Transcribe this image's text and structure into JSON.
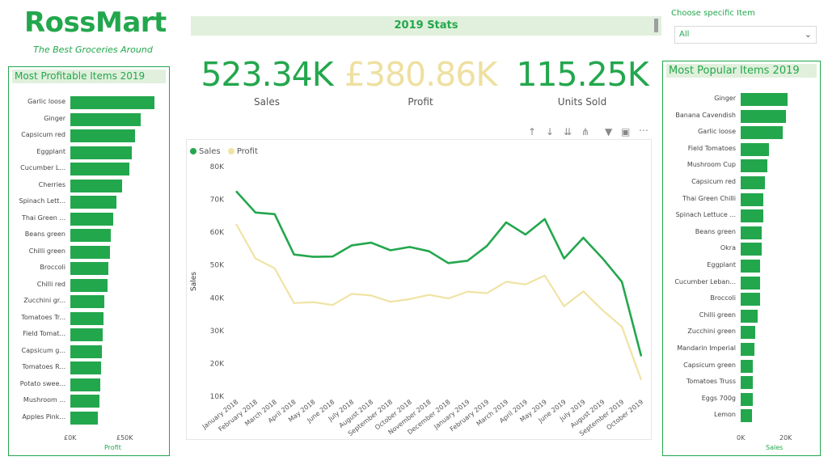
{
  "brand": {
    "title": "RossMart",
    "tagline": "The Best Groceries Around"
  },
  "banner": {
    "title": "2019 Stats"
  },
  "filter": {
    "label": "Choose specific Item",
    "selected": "All"
  },
  "kpis": [
    {
      "value": "523.34K",
      "label": "Sales",
      "color": "#23a74d"
    },
    {
      "value": "£380.86K",
      "label": "Profit",
      "color": "#eee0a0"
    },
    {
      "value": "115.25K",
      "label": "Units Sold",
      "color": "#23a74d"
    }
  ],
  "colors": {
    "accent": "#23a74d",
    "profit": "#f0e3a4",
    "banner": "#e1f0dc"
  },
  "toolbar_icons": [
    "arrow-up-icon",
    "arrow-down-icon",
    "double-arrow-down-icon",
    "fork-icon",
    "filter-icon",
    "focus-mode-icon",
    "more-options-icon"
  ],
  "chart_data": [
    {
      "type": "bar",
      "title": "Most Profitable Items 2019",
      "xlabel": "Profit",
      "categories": [
        "Garlic loose",
        "Ginger",
        "Capsicum red",
        "Eggplant",
        "Cucumber L...",
        "Cherries",
        "Spinach Lett...",
        "Thai Green ...",
        "Beans green",
        "Chilli green",
        "Broccoli",
        "Chilli red",
        "Zucchini gr...",
        "Tomatoes Tr...",
        "Field Tomat...",
        "Capsicum g...",
        "Tomatoes R...",
        "Potato swee...",
        "Mushroom ...",
        "Apples Pink..."
      ],
      "values": [
        74000,
        62000,
        57000,
        54000,
        52000,
        46000,
        41000,
        37500,
        35500,
        35000,
        33500,
        32500,
        30000,
        29000,
        28500,
        27500,
        27000,
        26500,
        25500,
        24500
      ],
      "xlim": [
        0,
        75000
      ],
      "ticks": [
        "£0K",
        "£50K"
      ]
    },
    {
      "type": "line",
      "xlabel": "",
      "ylabel": "Sales",
      "x": [
        "January 2018",
        "February 2018",
        "March 2018",
        "April 2018",
        "May 2018",
        "June 2018",
        "July 2018",
        "August 2018",
        "September 2018",
        "October 2018",
        "November 2018",
        "December 2018",
        "January 2019",
        "February 2019",
        "March 2019",
        "April 2019",
        "May 2019",
        "June 2019",
        "July 2019",
        "August 2019",
        "September 2019",
        "October 2019"
      ],
      "series": [
        {
          "name": "Sales",
          "color": "#23a74d",
          "values": [
            72500,
            66000,
            65500,
            53200,
            52500,
            52600,
            56000,
            56800,
            54500,
            55500,
            54200,
            50600,
            51300,
            55800,
            63000,
            59300,
            64000,
            52000,
            58300,
            52000,
            44900,
            22200
          ]
        },
        {
          "name": "Profit",
          "color": "#f0e3a4",
          "values": [
            62500,
            52000,
            49000,
            38400,
            38700,
            37800,
            41200,
            40700,
            38800,
            39600,
            40900,
            39800,
            41900,
            41400,
            44900,
            44100,
            46800,
            37400,
            42000,
            36200,
            31200,
            15000
          ]
        }
      ],
      "ylim": [
        10000,
        80000
      ],
      "yticks": [
        "10K",
        "20K",
        "30K",
        "40K",
        "50K",
        "60K",
        "70K",
        "80K"
      ],
      "grid": false,
      "legend": "top-left"
    },
    {
      "type": "bar",
      "title": "Most Popular Items 2019",
      "xlabel": "Sales",
      "categories": [
        "Ginger",
        "Banana Cavendish",
        "Garlic loose",
        "Field Tomatoes",
        "Mushroom Cup",
        "Capsicum red",
        "Thai Green Chilli",
        "Spinach Lettuce ...",
        "Beans green",
        "Okra",
        "Eggplant",
        "Cucumber Leban...",
        "Broccoli",
        "Chilli green",
        "Zucchini green",
        "Mandarin Imperial",
        "Capsicum green",
        "Tomatoes Truss",
        "Eggs 700g",
        "Lemon"
      ],
      "values": [
        23500,
        22700,
        20800,
        14300,
        13200,
        12100,
        11400,
        11300,
        10500,
        10300,
        9800,
        9700,
        9500,
        8600,
        7100,
        6900,
        6200,
        6000,
        5900,
        5500
      ],
      "xlim": [
        0,
        25000
      ],
      "ticks": [
        "0K",
        "20K"
      ]
    }
  ]
}
